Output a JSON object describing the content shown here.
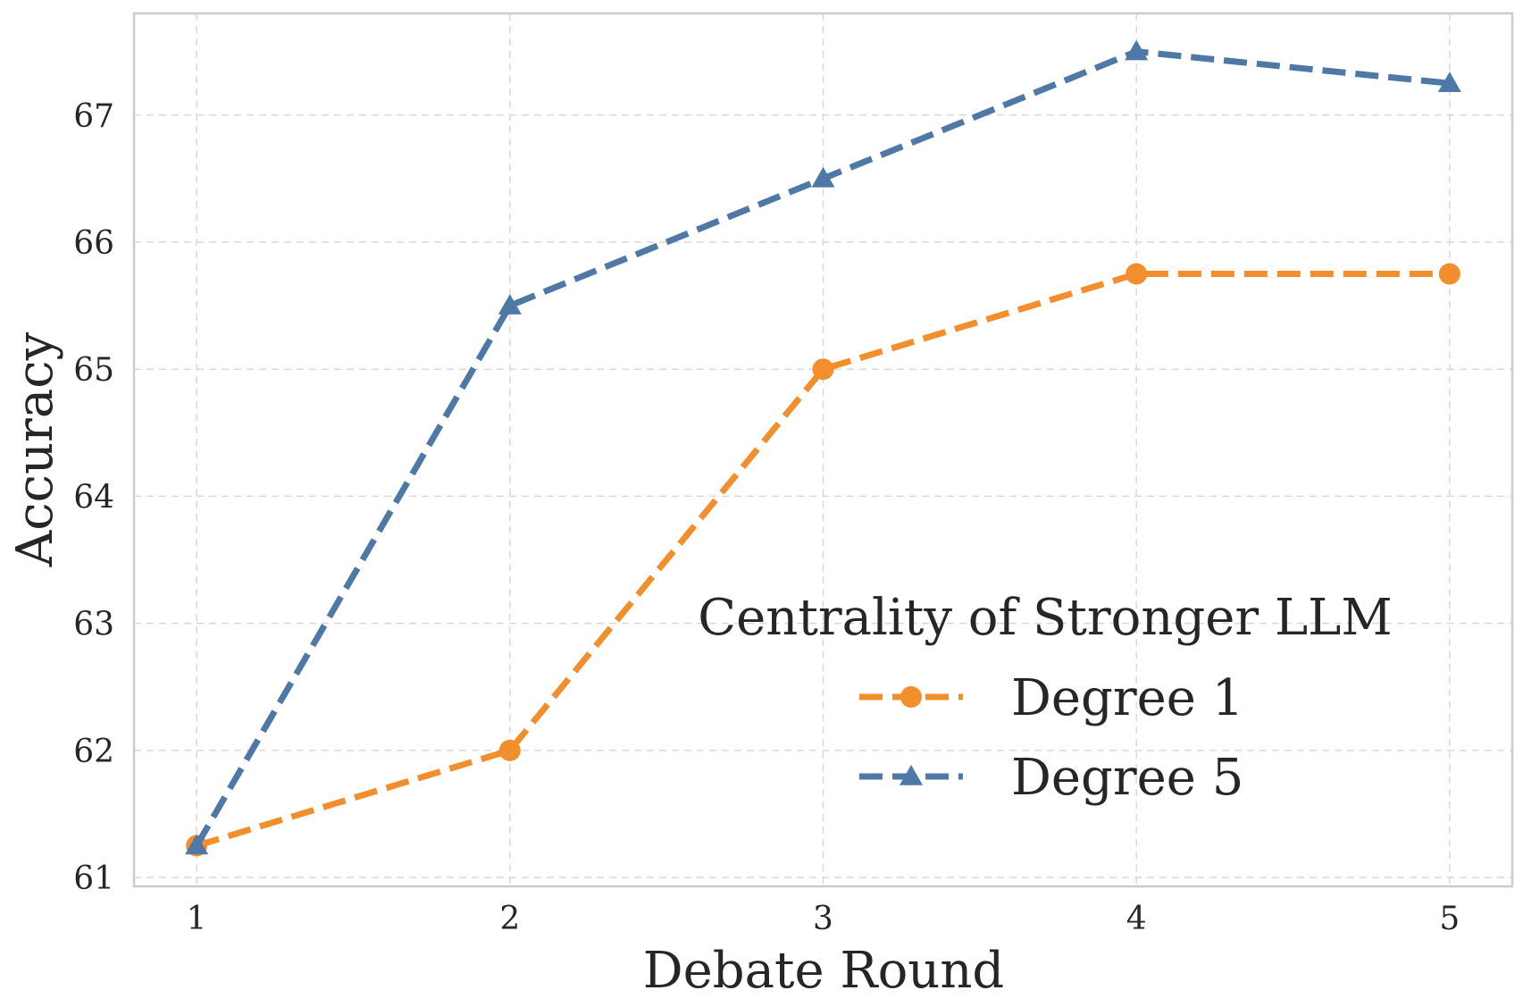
{
  "chart_data": {
    "type": "line",
    "xlabel": "Debate Round",
    "ylabel": "Accuracy",
    "x": [
      1,
      2,
      3,
      4,
      5
    ],
    "xlim": [
      0.8,
      5.2
    ],
    "ylim": [
      60.93,
      67.8
    ],
    "xticks": [
      1,
      2,
      3,
      4,
      5
    ],
    "yticks": [
      61,
      62,
      63,
      64,
      65,
      66,
      67
    ],
    "grid": true,
    "legend": {
      "title": "Centrality of Stronger LLM",
      "position": "lower-right"
    },
    "series": [
      {
        "name": "Degree 1",
        "values": [
          61.25,
          62.0,
          65.0,
          65.75,
          65.75
        ],
        "color": "#f28e2b",
        "marker": "circle",
        "linestyle": "dashed"
      },
      {
        "name": "Degree 5",
        "values": [
          61.25,
          65.5,
          66.5,
          67.5,
          67.25
        ],
        "color": "#4e79a7",
        "marker": "triangle",
        "linestyle": "dashed"
      }
    ]
  }
}
